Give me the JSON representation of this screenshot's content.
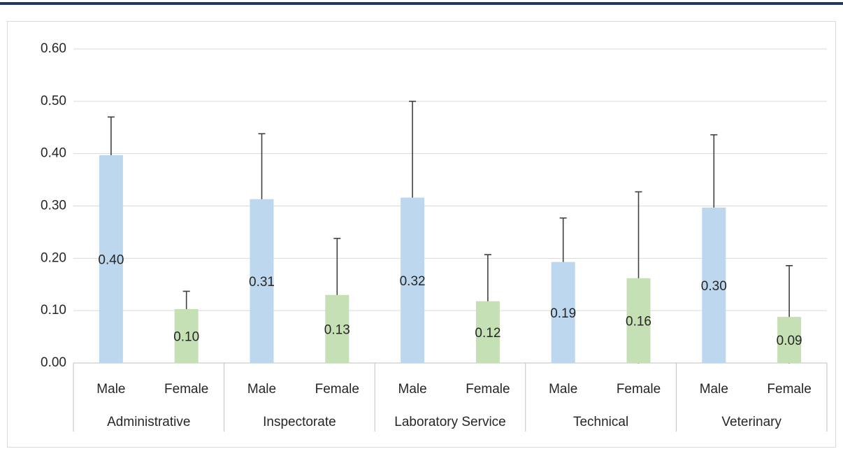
{
  "chart_data": {
    "type": "bar",
    "categories": [
      "Administrative",
      "Inspectorate",
      "Laboratory Service",
      "Technical",
      "Veterinary"
    ],
    "series": [
      {
        "name": "Male",
        "color": "#bdd7ee",
        "values": [
          0.397,
          0.313,
          0.316,
          0.193,
          0.297
        ],
        "errors": [
          0.073,
          0.125,
          0.184,
          0.084,
          0.139
        ],
        "value_labels": [
          "0.40",
          "0.31",
          "0.32",
          "0.19",
          "0.30"
        ]
      },
      {
        "name": "Female",
        "color": "#c5e0b4",
        "values": [
          0.103,
          0.13,
          0.118,
          0.162,
          0.088
        ],
        "errors": [
          0.034,
          0.108,
          0.089,
          0.165,
          0.098
        ],
        "value_labels": [
          "0.10",
          "0.13",
          "0.12",
          "0.16",
          "0.09"
        ]
      }
    ],
    "ylim": [
      0,
      0.6
    ],
    "yticks": [
      {
        "value": 0,
        "label": "0.00"
      },
      {
        "value": 0.1,
        "label": "0.10"
      },
      {
        "value": 0.2,
        "label": "0.20"
      },
      {
        "value": 0.3,
        "label": "0.30"
      },
      {
        "value": 0.4,
        "label": "0.40"
      },
      {
        "value": 0.5,
        "label": "0.50"
      },
      {
        "value": 0.6,
        "label": "0.60"
      }
    ],
    "grid": true
  }
}
